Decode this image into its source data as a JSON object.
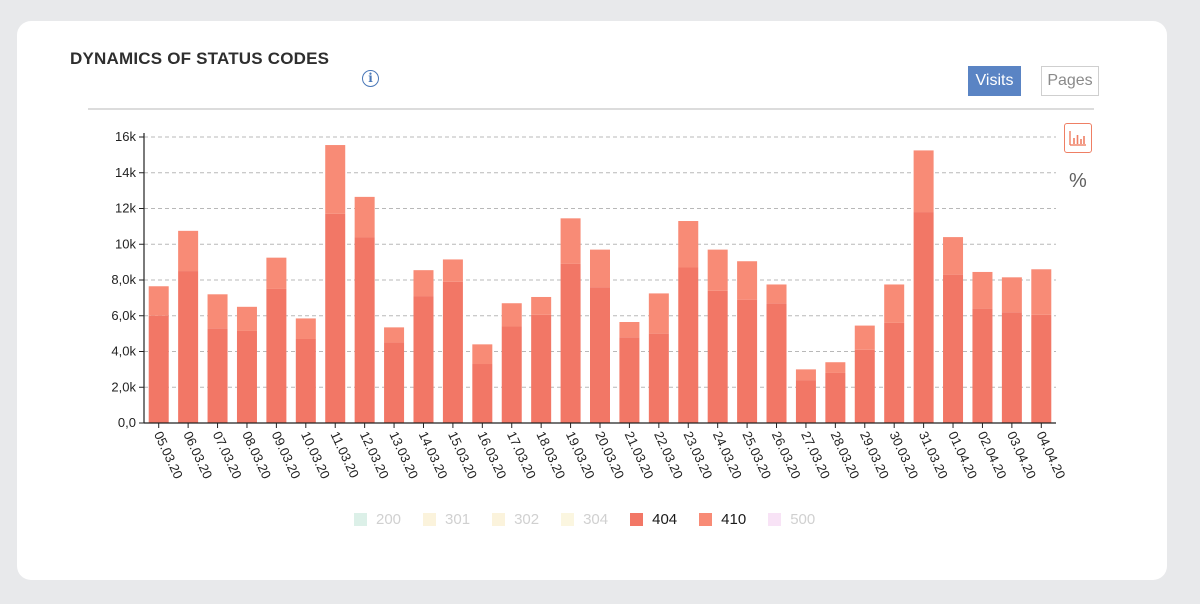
{
  "header": {
    "title": "DYNAMICS OF STATUS CODES",
    "info_icon": "info-circle-icon",
    "info_glyph": "i"
  },
  "toggle": {
    "visits_label": "Visits",
    "pages_label": "Pages",
    "active": "Visits"
  },
  "view_controls": {
    "bar_icon": "bar-chart-icon",
    "percent_label": "%"
  },
  "colors": {
    "accent": "#5a84c4",
    "series_404": "#f27766",
    "series_410": "#f88b76",
    "c200": "#dcf0e8",
    "c301": "#fbf3dc",
    "c302": "#fbf3dc",
    "c304": "#fbf6e0",
    "c500": "#f8e3f6"
  },
  "chart_data": {
    "type": "bar",
    "stacked": true,
    "title": "DYNAMICS OF STATUS CODES",
    "xlabel": "",
    "ylabel": "",
    "ylim": [
      0,
      16000
    ],
    "yticks": [
      0,
      2000,
      4000,
      6000,
      8000,
      10000,
      12000,
      14000,
      16000
    ],
    "ytick_labels": [
      "0,0",
      "2,0k",
      "4,0k",
      "6,0k",
      "8,0k",
      "10k",
      "12k",
      "14k",
      "16k"
    ],
    "grid": true,
    "legend_position": "bottom",
    "categories": [
      "05.03.20",
      "06.03.20",
      "07.03.20",
      "08.03.20",
      "09.03.20",
      "10.03.20",
      "11.03.20",
      "12.03.20",
      "13.03.20",
      "14.03.20",
      "15.03.20",
      "16.03.20",
      "17.03.20",
      "18.03.20",
      "19.03.20",
      "20.03.20",
      "21.03.20",
      "22.03.20",
      "23.03.20",
      "24.03.20",
      "25.03.20",
      "26.03.20",
      "27.03.20",
      "28.03.20",
      "29.03.20",
      "30.03.20",
      "31.03.20",
      "01.04.20",
      "02.04.20",
      "03.04.20",
      "04.04.20"
    ],
    "series": [
      {
        "name": "200",
        "values": [
          0,
          0,
          0,
          0,
          0,
          0,
          0,
          0,
          0,
          0,
          0,
          0,
          0,
          0,
          0,
          0,
          0,
          0,
          0,
          0,
          0,
          0,
          0,
          0,
          0,
          0,
          0,
          0,
          0,
          0,
          0
        ],
        "hidden": true
      },
      {
        "name": "301",
        "values": [
          0,
          0,
          0,
          0,
          0,
          0,
          0,
          0,
          0,
          0,
          0,
          0,
          0,
          0,
          0,
          0,
          0,
          0,
          0,
          0,
          0,
          0,
          0,
          0,
          0,
          0,
          0,
          0,
          0,
          0,
          0
        ],
        "hidden": true
      },
      {
        "name": "302",
        "values": [
          0,
          0,
          0,
          0,
          0,
          0,
          0,
          0,
          0,
          0,
          0,
          0,
          0,
          0,
          0,
          0,
          0,
          0,
          0,
          0,
          0,
          0,
          0,
          0,
          0,
          0,
          0,
          0,
          0,
          0,
          0
        ],
        "hidden": true
      },
      {
        "name": "304",
        "values": [
          0,
          0,
          0,
          0,
          0,
          0,
          0,
          0,
          0,
          0,
          0,
          0,
          0,
          0,
          0,
          0,
          0,
          0,
          0,
          0,
          0,
          0,
          0,
          0,
          0,
          0,
          0,
          0,
          0,
          0,
          0
        ],
        "hidden": true
      },
      {
        "name": "404",
        "values": [
          6000,
          8500,
          5300,
          5150,
          7500,
          4700,
          11700,
          10400,
          4500,
          7100,
          7900,
          3300,
          5400,
          6050,
          8900,
          7600,
          4800,
          5000,
          8700,
          7400,
          6900,
          6700,
          2400,
          2800,
          4100,
          5600,
          11800,
          8300,
          6400,
          6200,
          6050
        ]
      },
      {
        "name": "410",
        "values": [
          1650,
          2250,
          1900,
          1350,
          1750,
          1150,
          3850,
          2250,
          850,
          1450,
          1250,
          1100,
          1300,
          1000,
          2550,
          2100,
          850,
          2250,
          2600,
          2300,
          2150,
          1050,
          600,
          600,
          1350,
          2150,
          3450,
          2100,
          2050,
          1950,
          2550
        ]
      },
      {
        "name": "500",
        "values": [
          0,
          0,
          0,
          0,
          0,
          0,
          0,
          0,
          0,
          0,
          0,
          0,
          0,
          0,
          0,
          0,
          0,
          0,
          0,
          0,
          0,
          0,
          0,
          0,
          0,
          0,
          0,
          0,
          0,
          0,
          0
        ],
        "hidden": true
      }
    ]
  }
}
